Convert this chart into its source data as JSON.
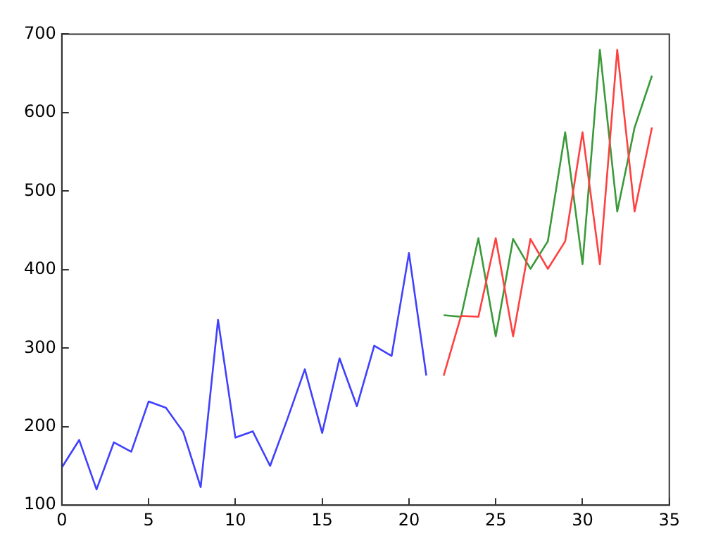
{
  "chart_data": {
    "type": "line",
    "xlim": [
      0,
      35
    ],
    "xticks": [
      0,
      5,
      10,
      15,
      20,
      25,
      30,
      35
    ],
    "ylim": [
      100,
      700
    ],
    "yticks": [
      100,
      200,
      300,
      400,
      500,
      600,
      700
    ],
    "grid": false,
    "legend": false,
    "marker": "none",
    "line_style": "solid",
    "series": [
      {
        "color": "#4040ff",
        "x": [
          0,
          1,
          2,
          3,
          4,
          5,
          6,
          7,
          8,
          9,
          10,
          11,
          12,
          13,
          14,
          15,
          16,
          17,
          18,
          19,
          20,
          21
        ],
        "values": [
          148,
          183,
          120,
          180,
          168,
          232,
          224,
          193,
          123,
          336,
          186,
          194,
          150,
          210,
          273,
          192,
          287,
          226,
          303,
          290,
          421,
          265
        ]
      },
      {
        "color": "#ff4040",
        "x": [
          22,
          23,
          24,
          25,
          26,
          27,
          28,
          29,
          30,
          31,
          32,
          33,
          34
        ],
        "values": [
          265,
          341,
          340,
          440,
          315,
          439,
          401,
          436,
          575,
          407,
          680,
          474,
          581
        ]
      },
      {
        "color": "#3a9a3a",
        "x": [
          22,
          23,
          24,
          25,
          26,
          27,
          28,
          29,
          30,
          31,
          32,
          33,
          34
        ],
        "values": [
          342,
          340,
          440,
          315,
          439,
          401,
          436,
          575,
          407,
          680,
          474,
          581,
          647
        ]
      }
    ]
  }
}
